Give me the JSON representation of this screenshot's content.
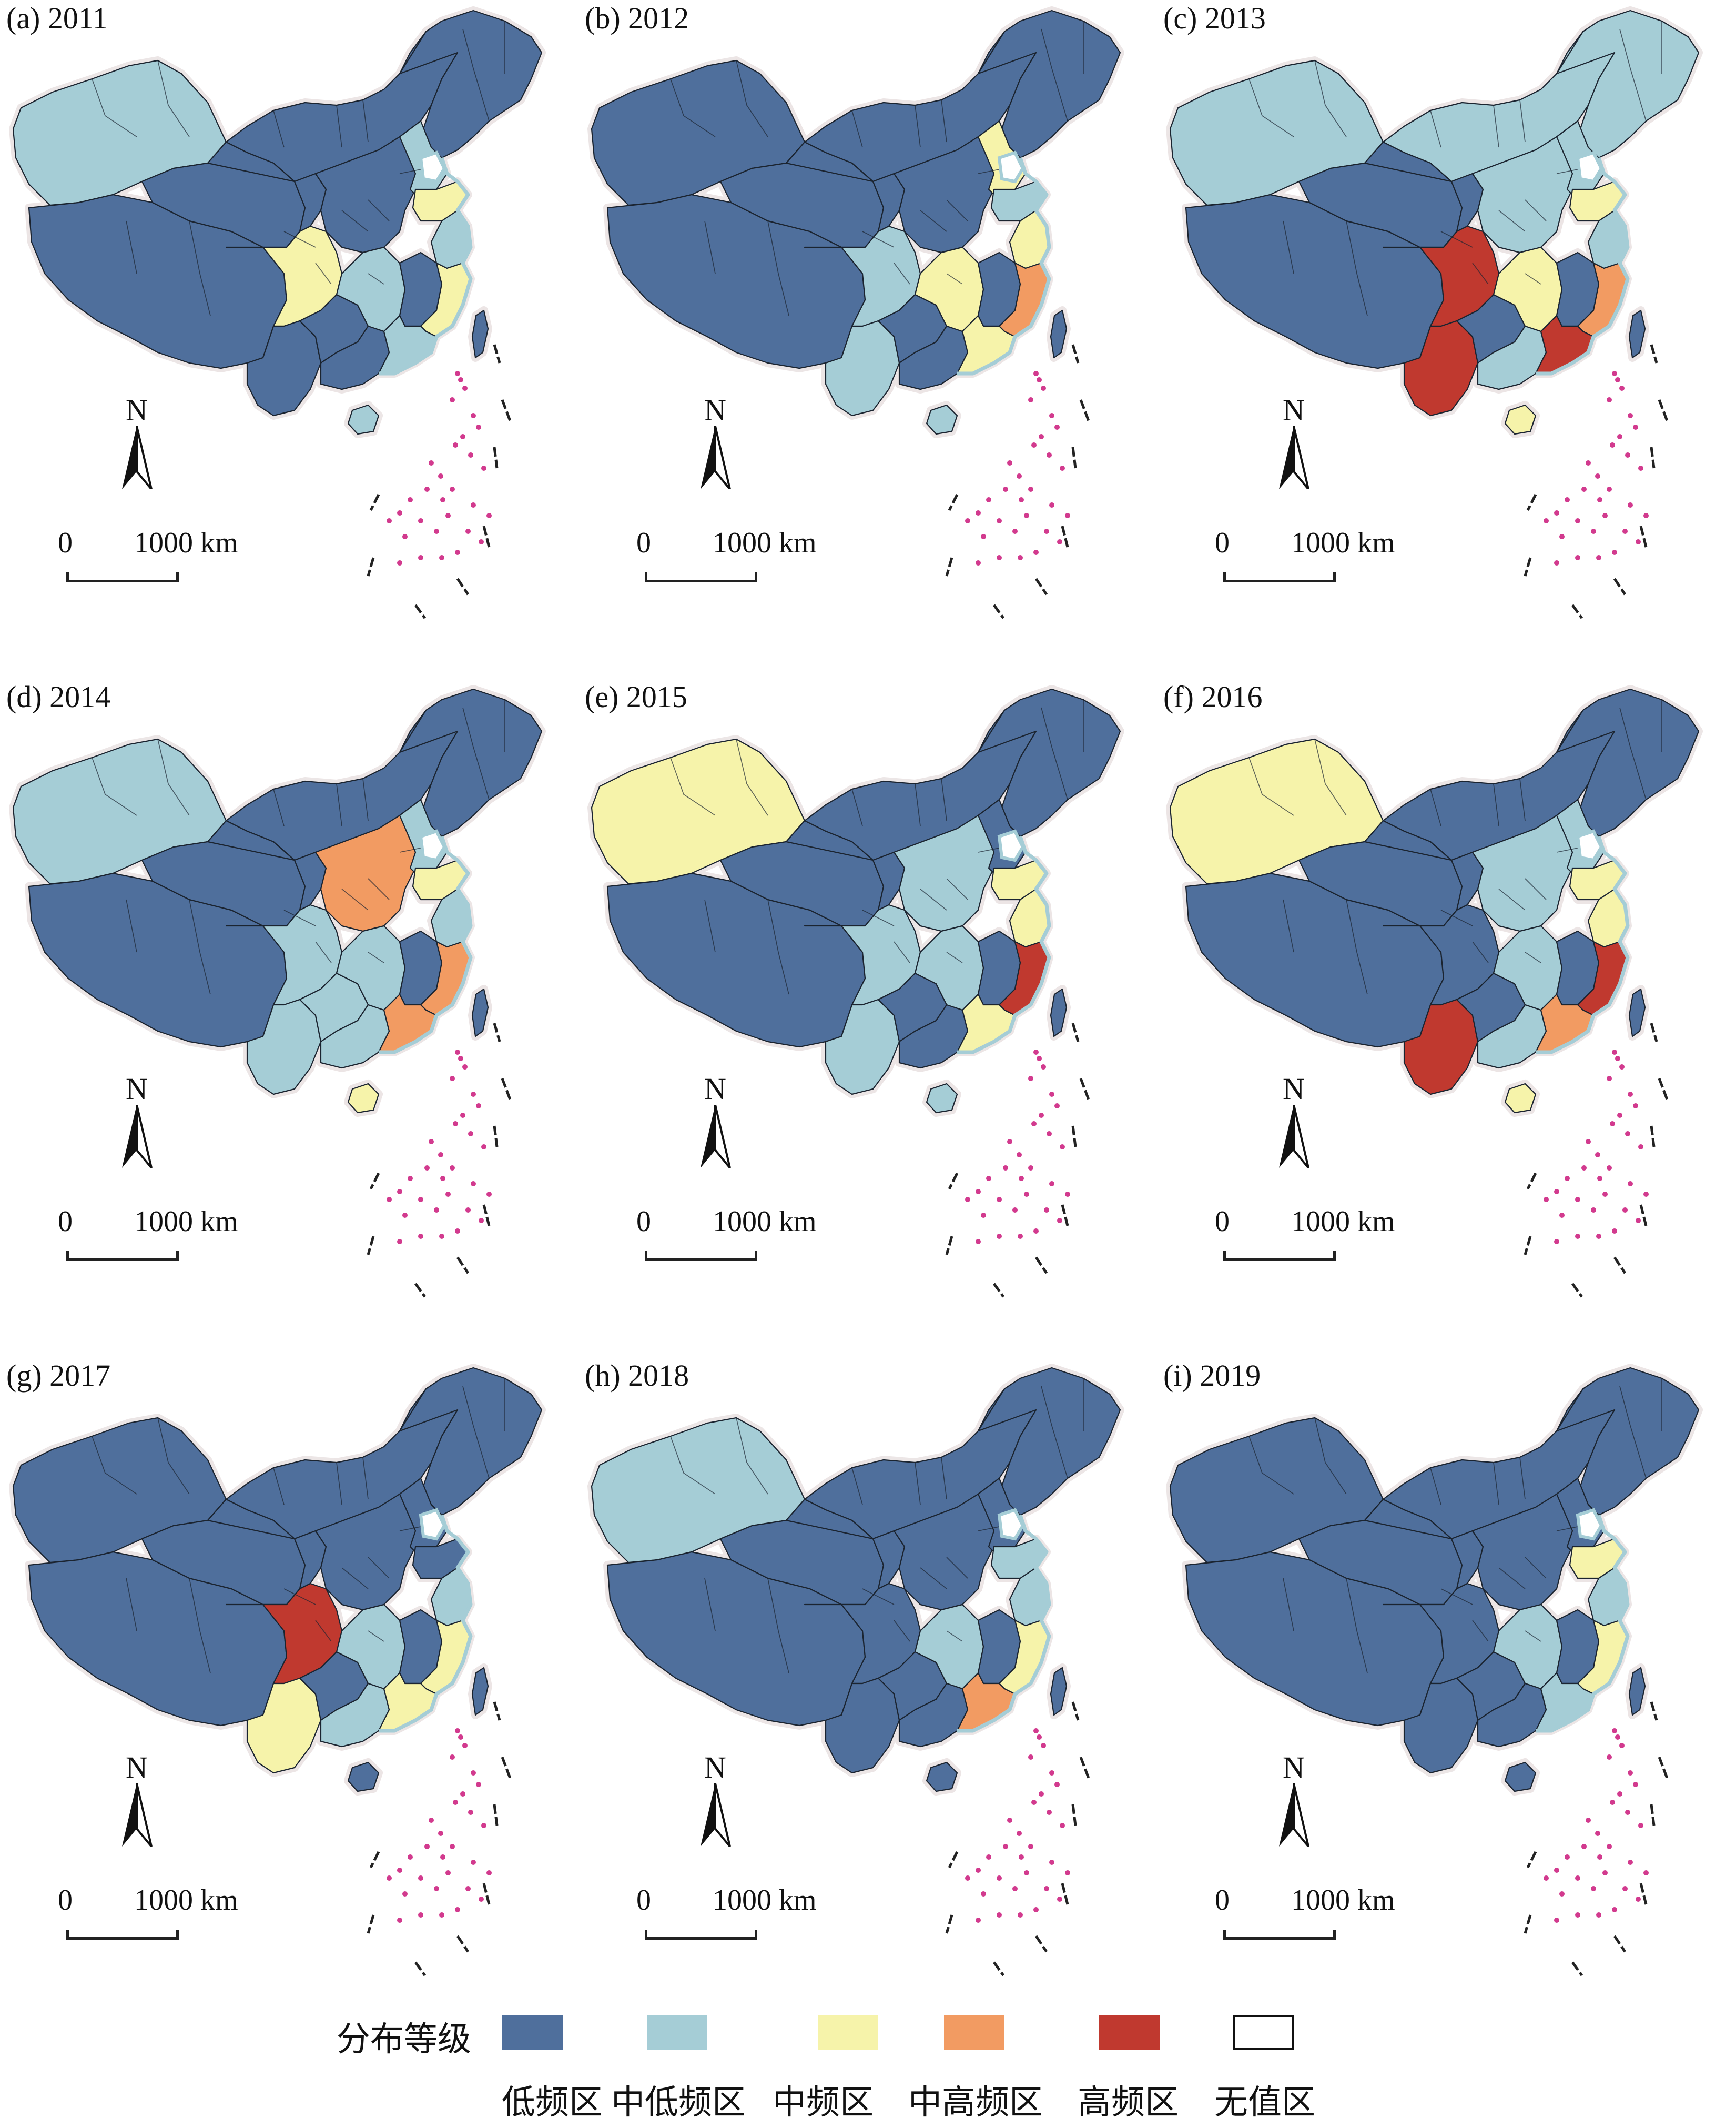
{
  "panels": [
    {
      "label": "(a) 2011",
      "sea_color": "#a5cdd6",
      "fills": {
        "xinjiang": "#a5cdd6",
        "tibet": "#4f6f9c",
        "qinghai": "#4f6f9c",
        "inner_mongolia": "#4f6f9c",
        "gansu": "#4f6f9c",
        "sichuan": "#f6f3aa",
        "yunnan": "#4f6f9c",
        "northeast": "#4f6f9c",
        "hebei": "#a5cdd6",
        "shandong": "#f6f3aa",
        "central_north": "#4f6f9c",
        "hunan": "#a5cdd6",
        "jiangxi": "#4f6f9c",
        "fujian": "#f6f3aa",
        "zhejiang": "#a5cdd6",
        "guangxi": "#4f6f9c",
        "guangdong": "#a5cdd6",
        "guizhou": "#4f6f9c",
        "hainan": "#a5cdd6",
        "taiwan": "#4f6f9c"
      }
    },
    {
      "label": "(b) 2012",
      "sea_color": "#a5cdd6",
      "fills": {
        "xinjiang": "#4f6f9c",
        "tibet": "#4f6f9c",
        "qinghai": "#4f6f9c",
        "inner_mongolia": "#4f6f9c",
        "gansu": "#4f6f9c",
        "sichuan": "#a5cdd6",
        "yunnan": "#a5cdd6",
        "northeast": "#4f6f9c",
        "hebei": "#f6f3aa",
        "shandong": "#a5cdd6",
        "central_north": "#4f6f9c",
        "hunan": "#f6f3aa",
        "jiangxi": "#4f6f9c",
        "fujian": "#f29b62",
        "zhejiang": "#f6f3aa",
        "guangxi": "#4f6f9c",
        "guangdong": "#f6f3aa",
        "guizhou": "#4f6f9c",
        "hainan": "#a5cdd6",
        "taiwan": "#4f6f9c"
      }
    },
    {
      "label": "(c) 2013",
      "sea_color": "#a5cdd6",
      "fills": {
        "xinjiang": "#a5cdd6",
        "tibet": "#4f6f9c",
        "qinghai": "#4f6f9c",
        "inner_mongolia": "#a5cdd6",
        "gansu": "#4f6f9c",
        "sichuan": "#c0392f",
        "yunnan": "#c0392f",
        "northeast": "#a5cdd6",
        "hebei": "#a5cdd6",
        "shandong": "#f6f3aa",
        "central_north": "#a5cdd6",
        "hunan": "#f6f3aa",
        "jiangxi": "#4f6f9c",
        "fujian": "#f29b62",
        "zhejiang": "#a5cdd6",
        "guangxi": "#a5cdd6",
        "guangdong": "#c0392f",
        "guizhou": "#4f6f9c",
        "hainan": "#f6f3aa",
        "taiwan": "#4f6f9c"
      }
    },
    {
      "label": "(d) 2014",
      "sea_color": "#a5cdd6",
      "fills": {
        "xinjiang": "#a5cdd6",
        "tibet": "#4f6f9c",
        "qinghai": "#4f6f9c",
        "inner_mongolia": "#4f6f9c",
        "gansu": "#4f6f9c",
        "sichuan": "#a5cdd6",
        "yunnan": "#a5cdd6",
        "northeast": "#4f6f9c",
        "hebei": "#a5cdd6",
        "shandong": "#f6f3aa",
        "central_north": "#f29b62",
        "hunan": "#a5cdd6",
        "jiangxi": "#4f6f9c",
        "fujian": "#f29b62",
        "zhejiang": "#a5cdd6",
        "guangxi": "#a5cdd6",
        "guangdong": "#f29b62",
        "guizhou": "#a5cdd6",
        "hainan": "#f6f3aa",
        "taiwan": "#4f6f9c"
      }
    },
    {
      "label": "(e) 2015",
      "sea_color": "#a5cdd6",
      "fills": {
        "xinjiang": "#f6f3aa",
        "tibet": "#4f6f9c",
        "qinghai": "#4f6f9c",
        "inner_mongolia": "#4f6f9c",
        "gansu": "#4f6f9c",
        "sichuan": "#a5cdd6",
        "yunnan": "#a5cdd6",
        "northeast": "#4f6f9c",
        "hebei": "#4f6f9c",
        "shandong": "#f6f3aa",
        "central_north": "#a5cdd6",
        "hunan": "#a5cdd6",
        "jiangxi": "#4f6f9c",
        "fujian": "#c0392f",
        "zhejiang": "#f6f3aa",
        "guangxi": "#4f6f9c",
        "guangdong": "#f6f3aa",
        "guizhou": "#4f6f9c",
        "hainan": "#a5cdd6",
        "taiwan": "#4f6f9c"
      }
    },
    {
      "label": "(f) 2016",
      "sea_color": "#a5cdd6",
      "fills": {
        "xinjiang": "#f6f3aa",
        "tibet": "#4f6f9c",
        "qinghai": "#4f6f9c",
        "inner_mongolia": "#4f6f9c",
        "gansu": "#4f6f9c",
        "sichuan": "#4f6f9c",
        "yunnan": "#c0392f",
        "northeast": "#4f6f9c",
        "hebei": "#a5cdd6",
        "shandong": "#f6f3aa",
        "central_north": "#a5cdd6",
        "hunan": "#a5cdd6",
        "jiangxi": "#4f6f9c",
        "fujian": "#c0392f",
        "zhejiang": "#f6f3aa",
        "guangxi": "#a5cdd6",
        "guangdong": "#f29b62",
        "guizhou": "#4f6f9c",
        "hainan": "#f6f3aa",
        "taiwan": "#4f6f9c"
      }
    },
    {
      "label": "(g) 2017",
      "sea_color": "#a5cdd6",
      "fills": {
        "xinjiang": "#4f6f9c",
        "tibet": "#4f6f9c",
        "qinghai": "#4f6f9c",
        "inner_mongolia": "#4f6f9c",
        "gansu": "#4f6f9c",
        "sichuan": "#c0392f",
        "yunnan": "#f6f3aa",
        "northeast": "#4f6f9c",
        "hebei": "#4f6f9c",
        "shandong": "#4f6f9c",
        "central_north": "#4f6f9c",
        "hunan": "#a5cdd6",
        "jiangxi": "#4f6f9c",
        "fujian": "#f6f3aa",
        "zhejiang": "#a5cdd6",
        "guangxi": "#a5cdd6",
        "guangdong": "#f6f3aa",
        "guizhou": "#4f6f9c",
        "hainan": "#4f6f9c",
        "taiwan": "#4f6f9c"
      }
    },
    {
      "label": "(h) 2018",
      "sea_color": "#a5cdd6",
      "fills": {
        "xinjiang": "#a5cdd6",
        "tibet": "#4f6f9c",
        "qinghai": "#4f6f9c",
        "inner_mongolia": "#4f6f9c",
        "gansu": "#4f6f9c",
        "sichuan": "#4f6f9c",
        "yunnan": "#4f6f9c",
        "northeast": "#4f6f9c",
        "hebei": "#4f6f9c",
        "shandong": "#a5cdd6",
        "central_north": "#4f6f9c",
        "hunan": "#a5cdd6",
        "jiangxi": "#4f6f9c",
        "fujian": "#f6f3aa",
        "zhejiang": "#a5cdd6",
        "guangxi": "#4f6f9c",
        "guangdong": "#f29b62",
        "guizhou": "#4f6f9c",
        "hainan": "#4f6f9c",
        "taiwan": "#4f6f9c"
      }
    },
    {
      "label": "(i) 2019",
      "sea_color": "#a5cdd6",
      "fills": {
        "xinjiang": "#4f6f9c",
        "tibet": "#4f6f9c",
        "qinghai": "#4f6f9c",
        "inner_mongolia": "#4f6f9c",
        "gansu": "#4f6f9c",
        "sichuan": "#4f6f9c",
        "yunnan": "#4f6f9c",
        "northeast": "#4f6f9c",
        "hebei": "#4f6f9c",
        "shandong": "#f6f3aa",
        "central_north": "#4f6f9c",
        "hunan": "#a5cdd6",
        "jiangxi": "#4f6f9c",
        "fujian": "#f6f3aa",
        "zhejiang": "#a5cdd6",
        "guangxi": "#4f6f9c",
        "guangdong": "#a5cdd6",
        "guizhou": "#4f6f9c",
        "hainan": "#4f6f9c",
        "taiwan": "#4f6f9c"
      }
    }
  ],
  "north_label": "N",
  "scale": {
    "zero": "0",
    "distance": "1000 km"
  },
  "legend": {
    "title": "分布等级",
    "items": [
      {
        "label": "低频区",
        "color": "#4f6f9c"
      },
      {
        "label": "中低频区",
        "color": "#a5cdd6"
      },
      {
        "label": "中频区",
        "color": "#f6f3aa"
      },
      {
        "label": "中高频区",
        "color": "#f29b62"
      },
      {
        "label": "高频区",
        "color": "#c0392f"
      },
      {
        "label": "无值区",
        "color": "#ffffff"
      }
    ]
  },
  "island_color": "#d23a8e"
}
